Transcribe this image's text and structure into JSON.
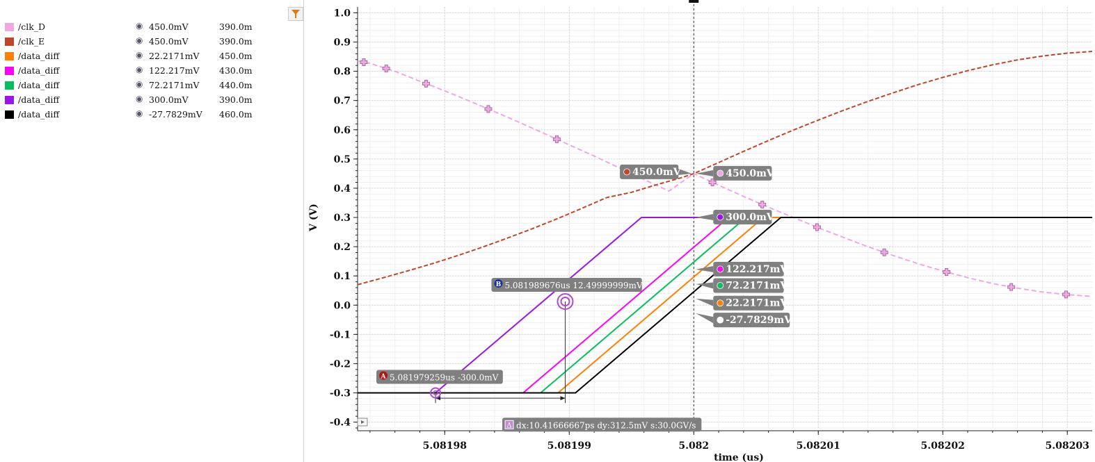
{
  "legend": {
    "rows": [
      {
        "name": "/clk_D",
        "value": "450.0mV",
        "value2": "390.0m",
        "color": "#f0a8e2"
      },
      {
        "name": "/clk_E",
        "value": "450.0mV",
        "value2": "390.0m",
        "color": "#c0462a"
      },
      {
        "name": "/data_diff",
        "value": "22.2171mV",
        "value2": "450.0m",
        "color": "#ff8000"
      },
      {
        "name": "/data_diff",
        "value": "122.217mV",
        "value2": "430.0m",
        "color": "#ff00ff"
      },
      {
        "name": "/data_diff",
        "value": "72.2171mV",
        "value2": "440.0m",
        "color": "#00c060"
      },
      {
        "name": "/data_diff",
        "value": "300.0mV",
        "value2": "390.0m",
        "color": "#9a16e8"
      },
      {
        "name": "/data_diff",
        "value": "-27.7829mV",
        "value2": "460.0m",
        "color": "#000000"
      }
    ]
  },
  "chart_data": {
    "type": "line",
    "xlabel": "time (us)",
    "ylabel": "V (V)",
    "xlim": [
      5.081973,
      5.082032
    ],
    "ylim": [
      -0.42,
      1.02
    ],
    "xticks": [
      5.08198,
      5.08199,
      5.082,
      5.08201,
      5.08202,
      5.08203
    ],
    "xtick_labels": [
      "5.08198",
      "5.08199",
      "5.082",
      "5.08201",
      "5.08202",
      "5.08203"
    ],
    "yticks": [
      1.0,
      0.9,
      0.8,
      0.7,
      0.6,
      0.5,
      0.4,
      0.3,
      0.2,
      0.1,
      0.0,
      -0.1,
      -0.2,
      -0.3,
      -0.4
    ],
    "ytick_labels": [
      "1.0",
      "0.9",
      "0.8",
      "0.7",
      "0.6",
      "0.5",
      "0.4",
      "0.3",
      "0.2",
      "0.1",
      "0.0",
      "-0.1",
      "-0.2",
      "-0.3",
      "-0.4"
    ],
    "grid": true,
    "vertical_cursor_x": 5.082,
    "series": [
      {
        "name": "/clk_D",
        "color": "#f0a8e2",
        "style": "dashed-markers",
        "points": [
          [
            5.081973,
            0.835
          ],
          [
            5.081974,
            0.827
          ],
          [
            5.081976,
            0.8
          ],
          [
            5.081978,
            0.766
          ],
          [
            5.08198,
            0.733
          ],
          [
            5.081982,
            0.698
          ],
          [
            5.081984,
            0.662
          ],
          [
            5.081986,
            0.625
          ],
          [
            5.081988,
            0.587
          ],
          [
            5.08199,
            0.548
          ],
          [
            5.081992,
            0.51
          ],
          [
            5.081994,
            0.47
          ],
          [
            5.081996,
            0.43
          ],
          [
            5.081998,
            0.39
          ],
          [
            5.082,
            0.45
          ],
          [
            5.082002,
            0.41
          ],
          [
            5.082004,
            0.372
          ],
          [
            5.082006,
            0.335
          ],
          [
            5.082008,
            0.3
          ],
          [
            5.08201,
            0.265
          ],
          [
            5.082012,
            0.232
          ],
          [
            5.082014,
            0.2
          ],
          [
            5.082016,
            0.17
          ],
          [
            5.082018,
            0.142
          ],
          [
            5.08202,
            0.117
          ],
          [
            5.082022,
            0.094
          ],
          [
            5.082024,
            0.074
          ],
          [
            5.082026,
            0.058
          ],
          [
            5.082028,
            0.045
          ],
          [
            5.08203,
            0.036
          ],
          [
            5.082032,
            0.03
          ]
        ],
        "marker_x": [
          5.0819735,
          5.0819753,
          5.0819785,
          5.0819835,
          5.081989,
          5.0819945,
          5.0820015,
          5.0820055,
          5.0820099,
          5.0820153,
          5.0820203,
          5.0820255,
          5.0820299
        ]
      },
      {
        "name": "/clk_E",
        "color": "#c0462a",
        "style": "dashed",
        "points": [
          [
            5.081973,
            0.07
          ],
          [
            5.081975,
            0.093
          ],
          [
            5.081977,
            0.117
          ],
          [
            5.081979,
            0.142
          ],
          [
            5.081981,
            0.169
          ],
          [
            5.081983,
            0.198
          ],
          [
            5.081985,
            0.229
          ],
          [
            5.081987,
            0.261
          ],
          [
            5.081989,
            0.295
          ],
          [
            5.081991,
            0.331
          ],
          [
            5.081993,
            0.368
          ],
          [
            5.081995,
            0.386
          ],
          [
            5.081997,
            0.412
          ],
          [
            5.081999,
            0.436
          ],
          [
            5.082,
            0.45
          ],
          [
            5.082002,
            0.488
          ],
          [
            5.082004,
            0.526
          ],
          [
            5.082006,
            0.563
          ],
          [
            5.082008,
            0.599
          ],
          [
            5.08201,
            0.633
          ],
          [
            5.082012,
            0.666
          ],
          [
            5.082014,
            0.697
          ],
          [
            5.082016,
            0.726
          ],
          [
            5.082018,
            0.754
          ],
          [
            5.08202,
            0.779
          ],
          [
            5.082022,
            0.802
          ],
          [
            5.082024,
            0.822
          ],
          [
            5.082026,
            0.839
          ],
          [
            5.082028,
            0.852
          ],
          [
            5.08203,
            0.862
          ],
          [
            5.082032,
            0.868
          ]
        ]
      },
      {
        "name": "/data_diff",
        "value": "300.0mV",
        "color": "#9a16e8",
        "points": [
          [
            5.081979259,
            -0.3
          ],
          [
            5.0819958,
            0.3
          ],
          [
            5.08201,
            0.3
          ]
        ]
      },
      {
        "name": "/data_diff",
        "value": "122.217mV",
        "color": "#ff00ff",
        "points": [
          [
            5.0819863,
            -0.3
          ],
          [
            5.0820028,
            0.3
          ],
          [
            5.08201,
            0.3
          ]
        ]
      },
      {
        "name": "/data_diff",
        "value": "72.2171mV",
        "color": "#00c060",
        "points": [
          [
            5.0819877,
            -0.3
          ],
          [
            5.0820042,
            0.3
          ],
          [
            5.08201,
            0.3
          ]
        ]
      },
      {
        "name": "/data_diff",
        "value": "22.2171mV",
        "color": "#ff8000",
        "points": [
          [
            5.0819891,
            -0.3
          ],
          [
            5.0820056,
            0.3
          ],
          [
            5.08201,
            0.3
          ]
        ]
      },
      {
        "name": "/data_diff",
        "value": "-27.7829mV",
        "color": "#000000",
        "points": [
          [
            5.081973,
            -0.3
          ],
          [
            5.0819905,
            -0.3
          ],
          [
            5.082007,
            0.3
          ],
          [
            5.082032,
            0.3
          ]
        ]
      }
    ],
    "annotations": {
      "value_labels": [
        {
          "text": "450.0mV",
          "color": "#c0462a",
          "x": 5.082,
          "y": 0.45,
          "side": "left"
        },
        {
          "text": "450.0mV",
          "color": "#f0a8e2",
          "x": 5.082,
          "y": 0.45,
          "side": "right"
        },
        {
          "text": "300.0mV",
          "color": "#9a16e8",
          "x": 5.082,
          "y": 0.3,
          "side": "right"
        },
        {
          "text": "122.217mV",
          "color": "#ff00ff",
          "x": 5.082,
          "y": 0.122217,
          "side": "right"
        },
        {
          "text": "72.2171mV",
          "color": "#00c060",
          "x": 5.082,
          "y": 0.0722171,
          "side": "right"
        },
        {
          "text": "22.2171mV",
          "color": "#ff8000",
          "x": 5.082,
          "y": 0.0222171,
          "side": "right"
        },
        {
          "text": "-27.7829mV",
          "color": "#ffffff",
          "x": 5.082,
          "y": -0.0277829,
          "side": "right"
        }
      ],
      "marker_a": {
        "badge": "A",
        "text": "5.081979259us -300.0mV",
        "x": 5.081979259,
        "y": -0.3
      },
      "marker_b": {
        "badge": "B",
        "text": "5.081989676us 12.49999999mV",
        "x": 5.081989676,
        "y": 0.0125
      },
      "delta": {
        "badge": "Δ",
        "text": "dx:10.41666667ps dy:312.5mV s:30.0GV/s"
      }
    }
  }
}
